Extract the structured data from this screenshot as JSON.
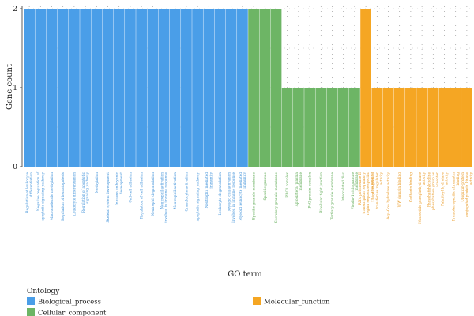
{
  "chart_data": {
    "type": "bar",
    "xlabel": "GO term",
    "ylabel": "Gene count",
    "ylim": [
      0,
      2
    ],
    "yticks": [
      "0",
      "1",
      "2"
    ],
    "grid": "dotted, lighter in Molecular_function region",
    "legend": {
      "title": "Ontology",
      "placement": "bottom-left",
      "items": [
        {
          "name": "Biological_process",
          "color": "#4a9ee8"
        },
        {
          "name": "Cellular_component",
          "color": "#6db565"
        },
        {
          "name": "Molecular_function",
          "color": "#f5a623"
        }
      ]
    },
    "groups": [
      {
        "name": "Biological_process",
        "color": "#4a9ee8",
        "label_color": "#3b8fd9",
        "categories": [
          "Regulation of leukocyte differentiation",
          "Negative regulation of apoptotic signaling pathway",
          "Macromolecule methylation",
          "Regulation of hematopoiesis",
          "Leukocyte differentiation",
          "Regulation of apoptotic signaling pathway",
          "Methylation",
          "Skeletal system development",
          "In utero embryonic development",
          "Cell-cell adhesion",
          "Regulation of cell adhesion",
          "Neutrophil degranulation",
          "Neutrophil activation involved in immune response",
          "Neutrophil activation",
          "Granulocyte activation",
          "Apoptotic signaling pathway",
          "Neutrophil mediated immunity",
          "Leukocyte degranulation",
          "Myeloid cell activation involved in immune response",
          "Myeloid leukocyte mediated immunity"
        ],
        "values": [
          2,
          2,
          2,
          2,
          2,
          2,
          2,
          2,
          2,
          2,
          2,
          2,
          2,
          2,
          2,
          2,
          2,
          2,
          2,
          2
        ]
      },
      {
        "name": "Cellular_component",
        "color": "#6db565",
        "label_color": "#5aa84f",
        "categories": [
          "Specific granule membrane",
          "Specific granule",
          "Secretory granule membrane",
          "PRC1 complex",
          "Apicolateral plasma membrane",
          "PcG protein complex",
          "Bicellular tight junction",
          "Tertiary granule membrane",
          "Intercalated disc",
          "Ficolin-1-rich granule membrane"
        ],
        "values": [
          2,
          2,
          2,
          1,
          1,
          1,
          1,
          1,
          1,
          1
        ]
      },
      {
        "name": "Molecular_function",
        "color": "#f5a623",
        "label_color": "#e8951a",
        "categories": [
          "RNA polymerase II transcription regulatory region sequence-specific DNA binding",
          "Ubiquitin-protein transferase regulator activity",
          "Acyl-CoA hydrolase activity",
          "WW domain binding",
          "Cadherin binding",
          "Nucleotide phosphohydrolase activity",
          "Phosphatidylcholine phosphatase group as acceptor",
          "Palmitoyl hydrolase activity",
          "Promoter-specific chromatin binding",
          "Ubiquitin-protein conjugated protein kinase activity"
        ],
        "values": [
          2,
          1,
          1,
          1,
          1,
          1,
          1,
          1,
          1,
          1
        ]
      }
    ]
  }
}
